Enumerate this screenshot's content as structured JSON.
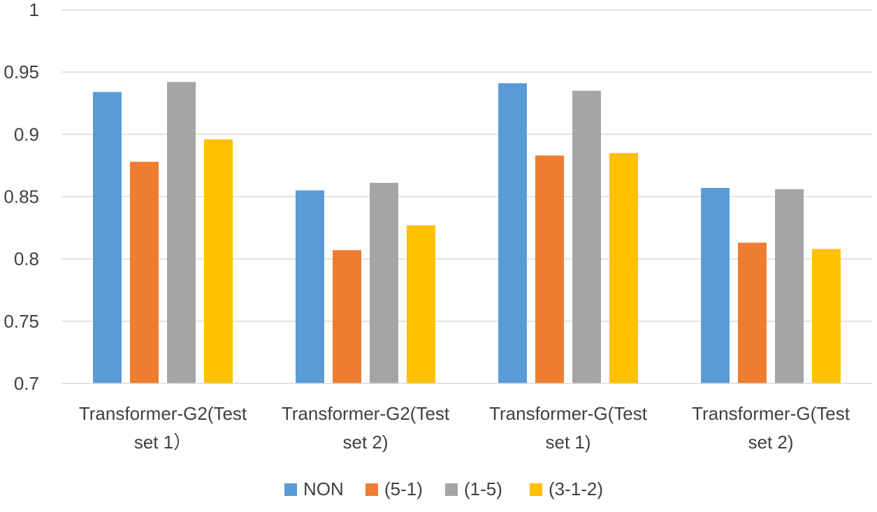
{
  "chart_data": {
    "type": "bar",
    "title": "",
    "xlabel": "",
    "ylabel": "",
    "ylim": [
      0.7,
      1
    ],
    "yticks": [
      "0.7",
      "0.75",
      "0.8",
      "0.85",
      "0.9",
      "0.95",
      "1"
    ],
    "grid": true,
    "legend_position": "bottom",
    "categories": [
      [
        "Transformer-G2(Test",
        "set 1）"
      ],
      [
        "Transformer-G2(Test",
        "set 2)"
      ],
      [
        "Transformer-G(Test",
        "set 1)"
      ],
      [
        "Transformer-G(Test",
        "set 2)"
      ]
    ],
    "series": [
      {
        "name": "NON",
        "color": "#5B9BD5",
        "values": [
          0.934,
          0.855,
          0.941,
          0.857
        ]
      },
      {
        "name": "(5-1)",
        "color": "#ED7D31",
        "values": [
          0.878,
          0.807,
          0.883,
          0.813
        ]
      },
      {
        "name": "(1-5)",
        "color": "#A5A5A5",
        "values": [
          0.942,
          0.861,
          0.935,
          0.856
        ]
      },
      {
        "name": "(3-1-2)",
        "color": "#FFC000",
        "values": [
          0.896,
          0.827,
          0.885,
          0.808
        ]
      }
    ]
  }
}
